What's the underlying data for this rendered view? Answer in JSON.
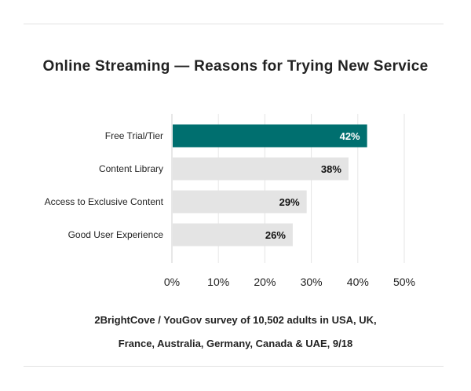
{
  "chart_data": {
    "type": "bar",
    "orientation": "horizontal",
    "title": "Online Streaming — Reasons for Trying New Service",
    "categories": [
      "Free Trial/Tier",
      "Content Library",
      "Access to Exclusive Content",
      "Good User Experience"
    ],
    "values": [
      42,
      38,
      29,
      26
    ],
    "data_labels": [
      "42%",
      "38%",
      "29%",
      "26%"
    ],
    "highlight_index": 0,
    "xlim": [
      0,
      50
    ],
    "x_ticks": [
      0,
      10,
      20,
      30,
      40,
      50
    ],
    "x_tick_labels": [
      "0%",
      "10%",
      "20%",
      "30%",
      "40%",
      "50%"
    ],
    "grid": true,
    "colors": {
      "highlight": "#006f6f",
      "bar": "#e4e4e4",
      "highlight_label": "#ffffff",
      "label": "#111111",
      "grid": "#e6e6e6"
    }
  },
  "source": {
    "line1": "2BrightCove / YouGov survey of 10,502 adults in USA, UK,",
    "line2": "France, Australia, Germany, Canada & UAE, 9/18"
  }
}
